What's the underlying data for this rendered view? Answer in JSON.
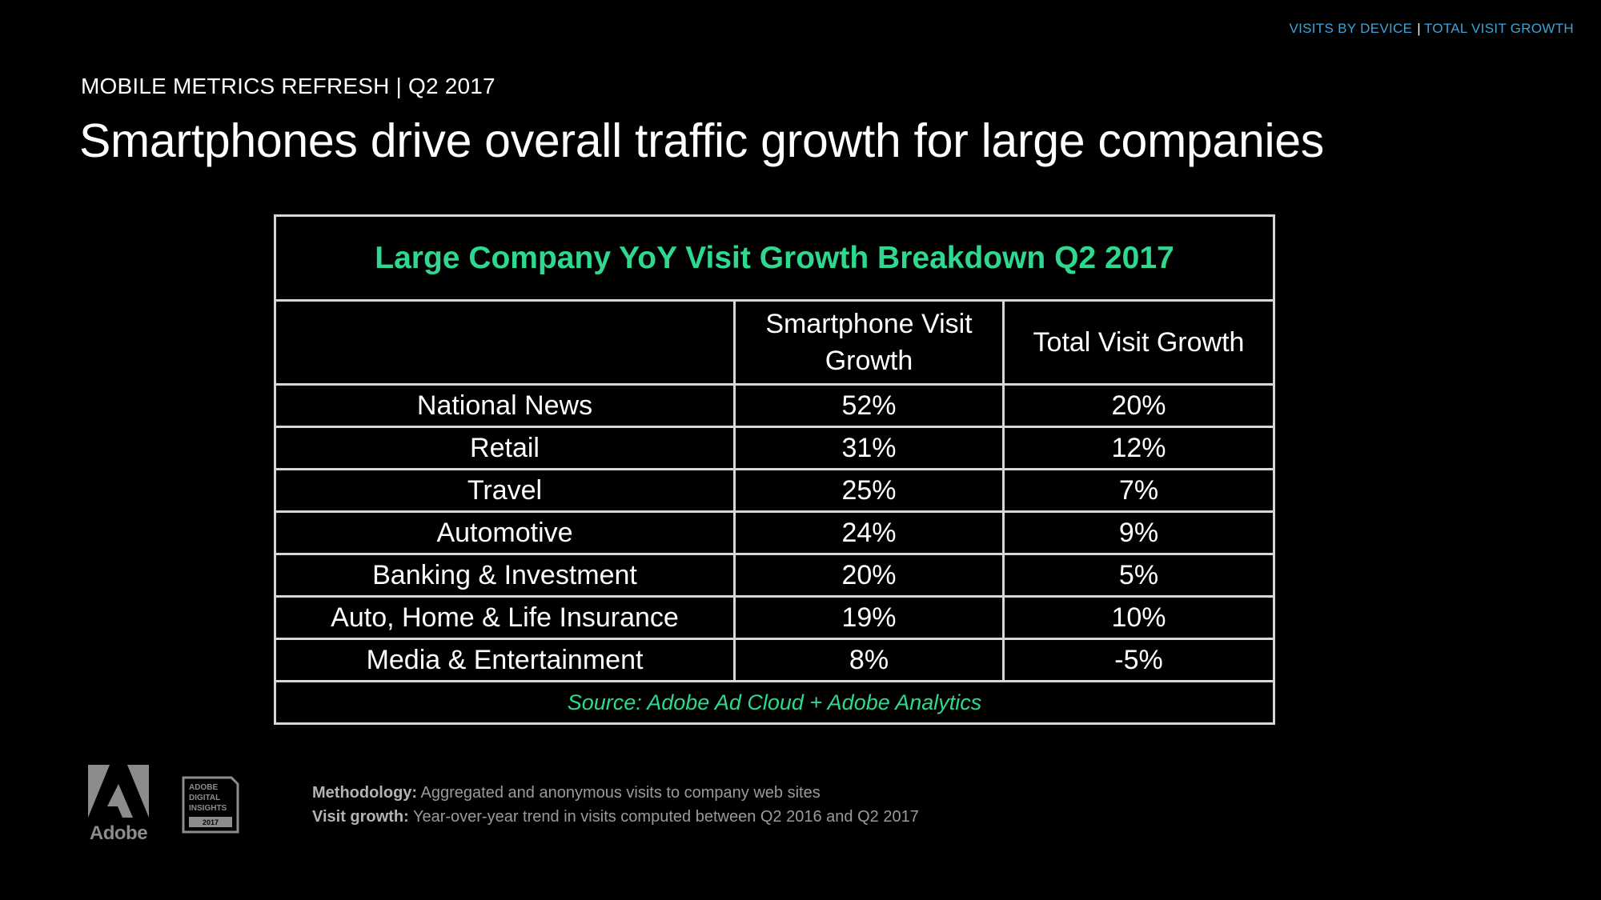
{
  "nav": {
    "link_1": "VISITS BY DEVICE",
    "separator": "|",
    "link_2": "TOTAL VISIT GROWTH"
  },
  "header": {
    "kicker": "MOBILE METRICS REFRESH | Q2 2017",
    "title": "Smartphones drive overall traffic growth for large companies"
  },
  "table": {
    "caption": "Large Company YoY Visit Growth Breakdown Q2 2017",
    "columns": [
      "",
      "Smartphone Visit Growth",
      "Total Visit Growth"
    ],
    "rows": [
      {
        "industry": "National News",
        "smartphone": "52%",
        "total": "20%"
      },
      {
        "industry": "Retail",
        "smartphone": "31%",
        "total": "12%"
      },
      {
        "industry": "Travel",
        "smartphone": "25%",
        "total": "7%"
      },
      {
        "industry": "Automotive",
        "smartphone": "24%",
        "total": "9%"
      },
      {
        "industry": "Banking & Investment",
        "smartphone": "20%",
        "total": "5%"
      },
      {
        "industry": "Auto, Home & Life Insurance",
        "smartphone": "19%",
        "total": "10%"
      },
      {
        "industry": "Media & Entertainment",
        "smartphone": "8%",
        "total": "-5%"
      }
    ],
    "source": "Source: Adobe Ad Cloud + Adobe Analytics"
  },
  "footer": {
    "logo_text": "Adobe",
    "badge_lines": [
      "ADOBE",
      "DIGITAL",
      "INSIGHTS",
      "2017"
    ],
    "methodology_label": "Methodology:",
    "methodology_text": " Aggregated and anonymous visits to company web sites",
    "visit_growth_label": "Visit growth:",
    "visit_growth_text": " Year-over-year trend in visits computed between Q2 2016 and Q2 2017"
  },
  "colors": {
    "accent_green": "#2ed98f",
    "nav_blue": "#3fa3d8",
    "background": "#000000",
    "grid_line": "#d7d7d7"
  }
}
